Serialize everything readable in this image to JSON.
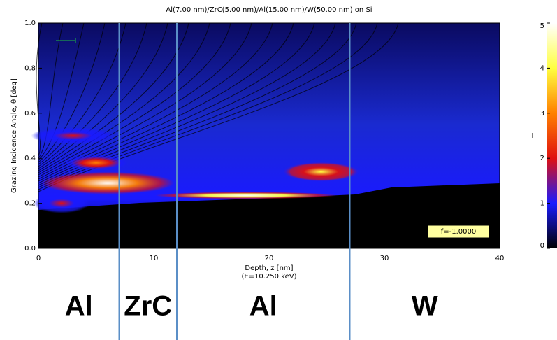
{
  "chart_data": {
    "type": "heatmap",
    "title": "Al(7.00 nm)/ZrC(5.00 nm)/Al(15.00 nm)/W(50.00 nm) on Si",
    "x_label": "Depth, z [nm]",
    "x_sublabel": "(E=10.250 keV)",
    "y_label": "Grazing Incidence Angle, θ [deg]",
    "colorbar_label": "I",
    "annotation": "f=-1.0000",
    "xlim": [
      0,
      40
    ],
    "xticks": [
      0,
      10,
      20,
      30,
      40
    ],
    "ylim": [
      0,
      1
    ],
    "yticks": [
      {
        "value": 0,
        "label": "0.0"
      },
      {
        "value": 0.2,
        "label": "0.2"
      },
      {
        "value": 0.4,
        "label": "0.4"
      },
      {
        "value": 0.6,
        "label": "0.6"
      },
      {
        "value": 0.8,
        "label": "0.8"
      },
      {
        "value": 1,
        "label": "1.0"
      }
    ],
    "clim": [
      0,
      5
    ],
    "cticks": [
      0,
      1,
      2,
      3,
      4,
      5
    ],
    "colormap": [
      "#000000",
      "#1a1aff",
      "#e01010",
      "#ff8000",
      "#ffff40",
      "#ffffff"
    ],
    "hotspots": {
      "depth": [
        6,
        5,
        18,
        24.5,
        2,
        3
      ],
      "angle": [
        0.29,
        0.38,
        0.235,
        0.34,
        0.2,
        0.5
      ],
      "intensity": [
        4.5,
        2.8,
        5,
        3.5,
        2,
        1.5
      ]
    },
    "layer_boundaries": [
      7,
      12,
      27
    ],
    "layers": [
      "Al",
      "ZrC",
      "Al",
      "W"
    ]
  }
}
